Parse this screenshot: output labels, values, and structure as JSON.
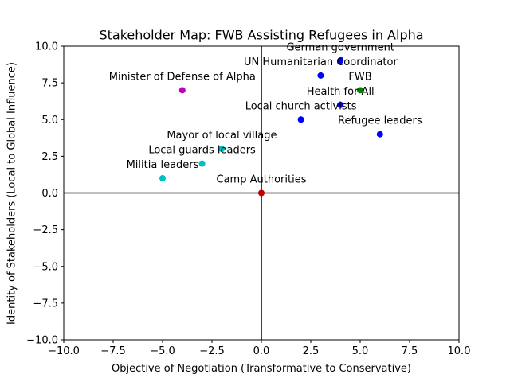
{
  "chart_data": {
    "type": "scatter",
    "title": "Stakeholder Map: FWB Assisting Refugees in Alpha",
    "xlabel": "Objective of Negotiation (Transformative to Conservative)",
    "ylabel": "Identity of Stakeholders (Local to Global Influence)",
    "xlim": [
      -10,
      10
    ],
    "ylim": [
      -10,
      10
    ],
    "xticks": [
      -10,
      -7.5,
      -5,
      -2.5,
      0,
      2.5,
      5,
      7.5,
      10
    ],
    "yticks": [
      -10,
      -7.5,
      -5,
      -2.5,
      0,
      2.5,
      5,
      7.5,
      10
    ],
    "xtick_labels": [
      "−10.0",
      "−7.5",
      "−5.0",
      "−2.5",
      "0.0",
      "2.5",
      "5.0",
      "7.5",
      "10.0"
    ],
    "ytick_labels": [
      "−10.0",
      "−7.5",
      "−5.0",
      "−2.5",
      "0.0",
      "2.5",
      "5.0",
      "7.5",
      "10.0"
    ],
    "grid": false,
    "reference_lines": [
      {
        "axis": "x",
        "value": 0
      },
      {
        "axis": "y",
        "value": 0
      }
    ],
    "points": [
      {
        "label": "German government",
        "x": 4,
        "y": 9,
        "color": "#0000ff"
      },
      {
        "label": "UN Humanitarian Coordinator",
        "x": 3,
        "y": 8,
        "color": "#0000ff"
      },
      {
        "label": "FWB",
        "x": 5,
        "y": 7,
        "color": "#008000"
      },
      {
        "label": "Minister of Defense of Alpha",
        "x": -4,
        "y": 7,
        "color": "#bf00bf"
      },
      {
        "label": "Health for All",
        "x": 4,
        "y": 6,
        "color": "#0000ff"
      },
      {
        "label": "Local church activists",
        "x": 2,
        "y": 5,
        "color": "#0000ff"
      },
      {
        "label": "Refugee leaders",
        "x": 6,
        "y": 4,
        "color": "#0000ff"
      },
      {
        "label": "Mayor of local village",
        "x": -2,
        "y": 3,
        "color": "#00bfbf"
      },
      {
        "label": "Local guards leaders",
        "x": -3,
        "y": 2,
        "color": "#00bfbf"
      },
      {
        "label": "Militia leaders",
        "x": -5,
        "y": 1,
        "color": "#00bfbf"
      },
      {
        "label": "Camp Authorities",
        "x": 0,
        "y": 0,
        "color": "#bf0000"
      }
    ]
  }
}
